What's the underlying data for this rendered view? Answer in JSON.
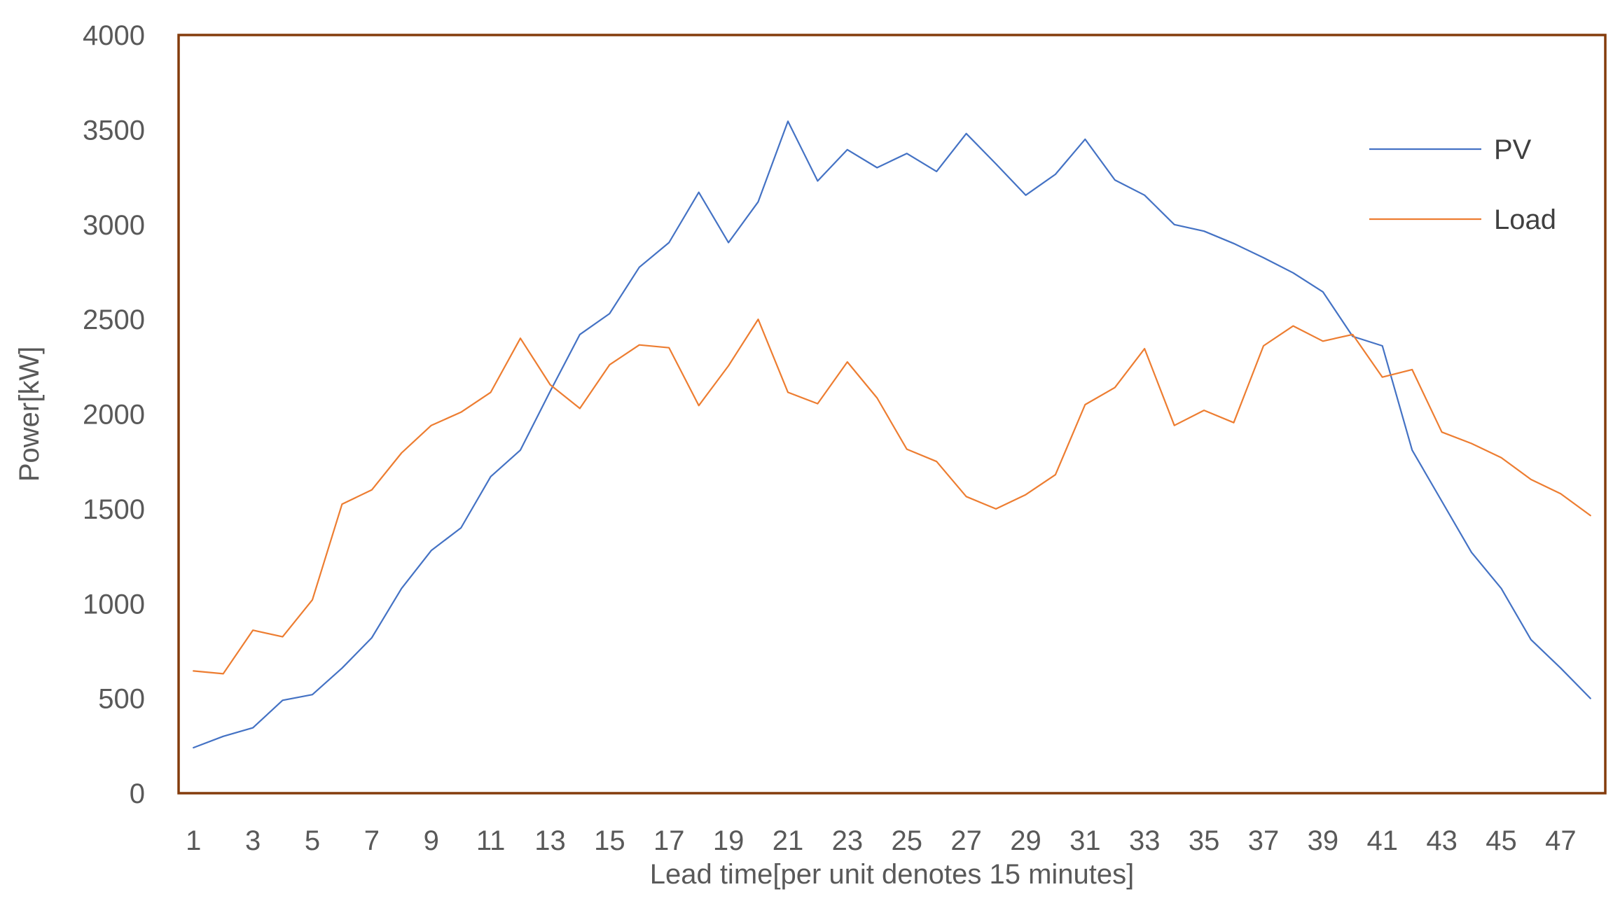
{
  "chart_data": {
    "type": "line",
    "title": "",
    "xlabel": "Lead time[per unit denotes 15 minutes]",
    "ylabel": "Power[kW]",
    "x": [
      1,
      2,
      3,
      4,
      5,
      6,
      7,
      8,
      9,
      10,
      11,
      12,
      13,
      14,
      15,
      16,
      17,
      18,
      19,
      20,
      21,
      22,
      23,
      24,
      25,
      26,
      27,
      28,
      29,
      30,
      31,
      32,
      33,
      34,
      35,
      36,
      37,
      38,
      39,
      40,
      41,
      42,
      43,
      44,
      45,
      46,
      47,
      48
    ],
    "x_tick_labels": [
      "1",
      "3",
      "5",
      "7",
      "9",
      "11",
      "13",
      "15",
      "17",
      "19",
      "21",
      "23",
      "25",
      "27",
      "29",
      "31",
      "33",
      "35",
      "37",
      "39",
      "41",
      "43",
      "45",
      "47"
    ],
    "xlim": [
      0.5,
      48.5
    ],
    "ylim": [
      0,
      4000
    ],
    "y_ticks": [
      0,
      500,
      1000,
      1500,
      2000,
      2500,
      3000,
      3500,
      4000
    ],
    "y_tick_labels": [
      "0",
      "500",
      "1000",
      "1500",
      "2000",
      "2500",
      "3000",
      "3500",
      "4000"
    ],
    "grid": false,
    "legend_position": "top-right",
    "series": [
      {
        "name": "PV",
        "color": "#4472C4",
        "values": [
          240,
          300,
          345,
          490,
          520,
          660,
          820,
          1080,
          1280,
          1400,
          1670,
          1810,
          2120,
          2420,
          2530,
          2775,
          2905,
          3170,
          2905,
          3120,
          3545,
          3230,
          3395,
          3300,
          3375,
          3280,
          3480,
          3320,
          3155,
          3265,
          3450,
          3235,
          3155,
          3000,
          2965,
          2900,
          2825,
          2745,
          2645,
          2410,
          2360,
          1810,
          1540,
          1270,
          1080,
          810,
          660,
          500
        ]
      },
      {
        "name": "Load",
        "color": "#ED7D31",
        "values": [
          645,
          630,
          860,
          825,
          1020,
          1525,
          1600,
          1795,
          1940,
          2010,
          2115,
          2400,
          2155,
          2030,
          2260,
          2365,
          2350,
          2045,
          2255,
          2500,
          2115,
          2055,
          2275,
          2085,
          1815,
          1750,
          1565,
          1500,
          1575,
          1680,
          2050,
          2140,
          2345,
          1940,
          2020,
          1955,
          2360,
          2465,
          2385,
          2420,
          2195,
          2235,
          1905,
          1845,
          1770,
          1655,
          1580,
          1465
        ]
      }
    ]
  },
  "frame_color": "#843C0C",
  "background_color": "#FFFFFF"
}
